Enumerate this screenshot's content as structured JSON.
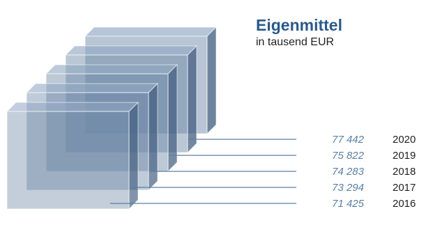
{
  "chart_data": {
    "type": "bar",
    "title": "Eigenmittel",
    "subtitle": "in tausend EUR",
    "categories": [
      "2016",
      "2017",
      "2018",
      "2019",
      "2020"
    ],
    "values": [
      71425,
      73294,
      74283,
      75822,
      77442
    ],
    "value_labels": [
      "71 425",
      "73 294",
      "74 283",
      "75 822",
      "77 442"
    ],
    "colors": {
      "title": "#2b5a8a",
      "value_text": "#5a7fa5",
      "leader_line": "#5a7fa5",
      "year_text": "#222222",
      "box_front": "#6d87a6",
      "box_side": "#3e5a7d",
      "box_top": "#8fa6c2"
    }
  }
}
